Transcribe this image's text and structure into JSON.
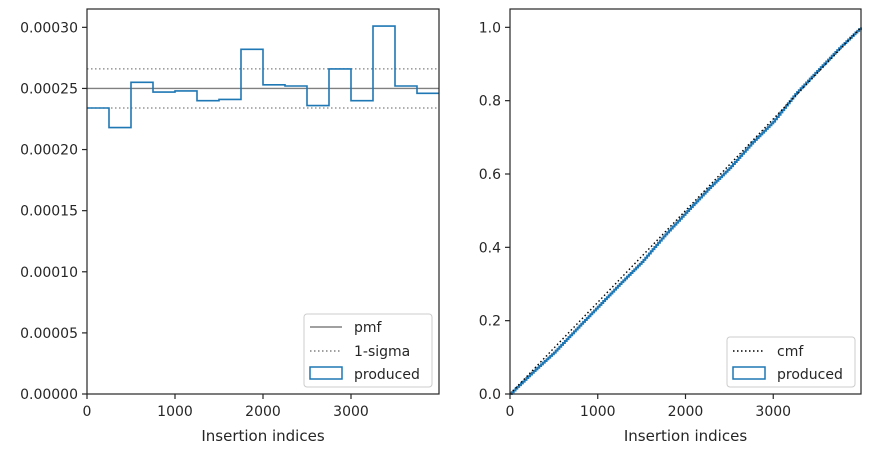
{
  "chart_data": [
    {
      "type": "histogram",
      "xlabel": "Insertion indices",
      "ylabel": "",
      "xlim": [
        0,
        4000
      ],
      "ylim": [
        0,
        0.000315
      ],
      "xticks": [
        0,
        1000,
        2000,
        3000
      ],
      "xtick_labels": [
        "0",
        "1000",
        "2000",
        "3000"
      ],
      "yticks": [
        0,
        5e-05,
        0.0001,
        0.00015,
        0.0002,
        0.00025,
        0.0003
      ],
      "ytick_labels": [
        "0.00000",
        "0.00005",
        "0.00010",
        "0.00015",
        "0.00020",
        "0.00025",
        "0.00030"
      ],
      "grid": false,
      "legend_position": "lower-right",
      "colors": {
        "produced": "#1f77b4",
        "pmf": "#808080",
        "sigma": "#808080"
      },
      "legend": [
        "pmf",
        "1-sigma",
        "produced"
      ],
      "bin_edges": [
        0,
        250,
        500,
        750,
        1000,
        1250,
        1500,
        1750,
        2000,
        2250,
        2500,
        2750,
        3000,
        3250,
        3500,
        3750,
        4000
      ],
      "series": [
        {
          "name": "produced",
          "style": "step",
          "values": [
            0.000234,
            0.000218,
            0.000255,
            0.000247,
            0.000248,
            0.00024,
            0.000241,
            0.000282,
            0.000253,
            0.000252,
            0.000236,
            0.000266,
            0.00024,
            0.000301,
            0.000252,
            0.000246
          ]
        },
        {
          "name": "pmf",
          "style": "hline",
          "values": [
            0.00025
          ]
        },
        {
          "name": "1-sigma",
          "style": "hline-dotted",
          "values": [
            0.000266,
            0.000234
          ]
        }
      ]
    },
    {
      "type": "line",
      "xlabel": "Insertion indices",
      "ylabel": "",
      "xlim": [
        0,
        4000
      ],
      "ylim": [
        0,
        1.05
      ],
      "xticks": [
        0,
        1000,
        2000,
        3000
      ],
      "xtick_labels": [
        "0",
        "1000",
        "2000",
        "3000"
      ],
      "yticks": [
        0,
        0.2,
        0.4,
        0.6,
        0.8,
        1.0
      ],
      "ytick_labels": [
        "0.0",
        "0.2",
        "0.4",
        "0.6",
        "0.8",
        "1.0"
      ],
      "grid": false,
      "legend_position": "lower-right",
      "colors": {
        "produced": "#1f77b4",
        "cmf": "#000000"
      },
      "legend": [
        "cmf",
        "produced"
      ],
      "series": [
        {
          "name": "cmf",
          "style": "dotted",
          "x": [
            0,
            4000
          ],
          "y": [
            0,
            1.0
          ]
        },
        {
          "name": "produced",
          "style": "step",
          "x": [
            0,
            250,
            500,
            750,
            1000,
            1250,
            1500,
            1750,
            2000,
            2250,
            2500,
            2750,
            3000,
            3250,
            3500,
            3750,
            4000
          ],
          "y": [
            0,
            0.058,
            0.113,
            0.176,
            0.238,
            0.3,
            0.36,
            0.43,
            0.494,
            0.557,
            0.616,
            0.683,
            0.743,
            0.818,
            0.881,
            0.943,
            1.0
          ]
        }
      ]
    }
  ]
}
